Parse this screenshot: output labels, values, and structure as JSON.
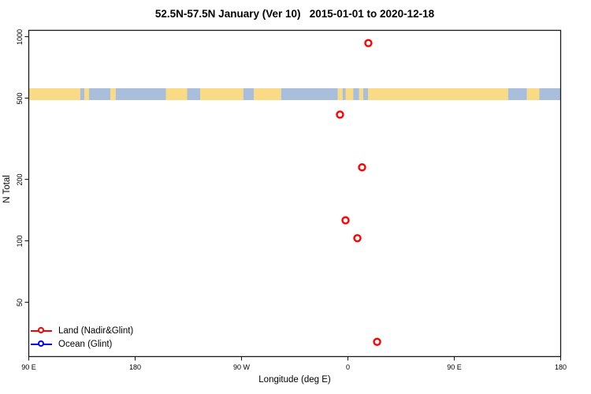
{
  "chart_data": {
    "type": "scatter",
    "title": "52.5N-57.5N January (Ver 10)   2015-01-01 to 2020-12-18",
    "xlabel": "Longitude (deg E)",
    "ylabel": "N Total",
    "x_axis": {
      "domain": [
        90,
        540
      ],
      "tick_values": [
        90,
        180,
        270,
        360,
        450,
        540
      ],
      "tick_labels": [
        "90 E",
        "180",
        "90 W",
        "0",
        "90 E",
        "180"
      ]
    },
    "y_axis": {
      "scale": "log",
      "domain": [
        27.1,
        1074
      ],
      "tick_values": [
        50,
        100,
        200,
        500,
        1000
      ],
      "tick_labels": [
        "50",
        "100",
        "200",
        "500",
        "1000"
      ]
    },
    "grid": "off",
    "legend_position": "bottom-left",
    "series": [
      {
        "name": "Land (Nadir&Glint)",
        "color": "#FF0000",
        "points": [
          {
            "lon_deg_e": 17,
            "x_plot": 377.3,
            "n_total": 930
          },
          {
            "lon_deg_e": -7,
            "x_plot": 353.3,
            "n_total": 415
          },
          {
            "lon_deg_e": 12,
            "x_plot": 372.0,
            "n_total": 229
          },
          {
            "lon_deg_e": -2,
            "x_plot": 358.0,
            "n_total": 126
          },
          {
            "lon_deg_e": 8,
            "x_plot": 368.0,
            "n_total": 103
          },
          {
            "lon_deg_e": 25,
            "x_plot": 384.7,
            "n_total": 32
          }
        ]
      },
      {
        "name": "Ocean (Glint)",
        "color": "#0000FF",
        "points": []
      }
    ],
    "land_ocean_strip": {
      "description": "land/sea mask band for 52.5N-57.5N drawn at N Total = 500",
      "center_value": 500,
      "land_color": "#FADB85",
      "ocean_color": "#A8BEDA",
      "segments": [
        {
          "from": 90,
          "to": 133.5,
          "type": "land"
        },
        {
          "from": 133.5,
          "to": 137,
          "type": "ocean"
        },
        {
          "from": 137,
          "to": 141,
          "type": "land"
        },
        {
          "from": 141,
          "to": 159,
          "type": "ocean"
        },
        {
          "from": 159,
          "to": 163.5,
          "type": "land"
        },
        {
          "from": 163.5,
          "to": 206,
          "type": "ocean"
        },
        {
          "from": 206,
          "to": 224,
          "type": "land"
        },
        {
          "from": 224,
          "to": 235,
          "type": "ocean"
        },
        {
          "from": 235,
          "to": 271.5,
          "type": "land"
        },
        {
          "from": 271.5,
          "to": 280.5,
          "type": "ocean"
        },
        {
          "from": 280.5,
          "to": 303.5,
          "type": "land"
        },
        {
          "from": 303.5,
          "to": 351.5,
          "type": "ocean"
        },
        {
          "from": 351.5,
          "to": 355.5,
          "type": "land"
        },
        {
          "from": 355.5,
          "to": 358,
          "type": "ocean"
        },
        {
          "from": 358,
          "to": 364.5,
          "type": "land"
        },
        {
          "from": 364.5,
          "to": 369.5,
          "type": "ocean"
        },
        {
          "from": 369.5,
          "to": 373,
          "type": "land"
        },
        {
          "from": 373,
          "to": 377,
          "type": "ocean"
        },
        {
          "from": 377,
          "to": 495.5,
          "type": "land"
        },
        {
          "from": 495.5,
          "to": 511.5,
          "type": "ocean"
        },
        {
          "from": 511.5,
          "to": 522,
          "type": "land"
        },
        {
          "from": 522,
          "to": 540,
          "type": "ocean"
        }
      ]
    },
    "colors": {
      "axis": "#1a1a1a",
      "background": "#ffffff"
    }
  }
}
